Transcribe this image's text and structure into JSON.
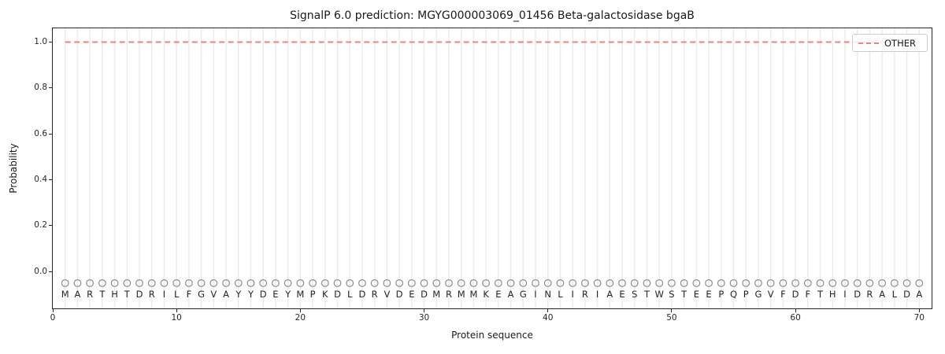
{
  "chart_data": {
    "type": "line",
    "title": "SignalP 6.0 prediction: MGYG000003069_01456 Beta-galactosidase bgaB",
    "xlabel": "Protein sequence",
    "ylabel": "Probability",
    "xlim": [
      0,
      71
    ],
    "ylim": [
      -0.16,
      1.06
    ],
    "xticks": [
      0,
      10,
      20,
      30,
      40,
      50,
      60,
      70
    ],
    "yticks": [
      0.0,
      0.2,
      0.4,
      0.6,
      0.8,
      1.0
    ],
    "ytick_labels": [
      "0.0",
      "0.2",
      "0.4",
      "0.6",
      "0.8",
      "1.0"
    ],
    "grid": {
      "vertical": "one line per residue position",
      "horizontal": false,
      "color": "#ececec"
    },
    "sequence": "MARTHTDRILFGVAYYDEYMPKDLDRVDEDMRMMKEAGINLIRIAESTWSTEEPQPGVFDFTHIDRALDA",
    "sequence_length": 70,
    "residue_letter_y": -0.1,
    "series": [
      {
        "name": "OTHER",
        "line_style": "dashed",
        "color": "#f08080",
        "x_start": 1,
        "x_end": 70,
        "constant_y": 1.0
      }
    ],
    "residue_markers": {
      "shape": "open-circle",
      "color": "#8c8c8c",
      "y": -0.05
    },
    "legend": {
      "position": "upper-right",
      "entries": [
        {
          "label": "OTHER",
          "line_style": "dashed",
          "color": "#f08080"
        }
      ]
    },
    "colors": {
      "spine": "#262626",
      "text": "#1a1a1a",
      "grid": "#ececec",
      "marker": "#8c8c8c",
      "other_line": "#f08080",
      "legend_border": "#cccccc",
      "background": "#ffffff"
    }
  }
}
